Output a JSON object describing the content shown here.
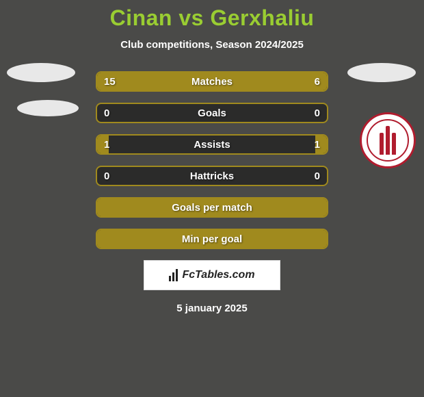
{
  "title": "Cinan vs Gerxhaliu",
  "subtitle": "Club competitions, Season 2024/2025",
  "colors": {
    "background": "#4a4a48",
    "title": "#9acd32",
    "bar_border": "#a08a1e",
    "bar_fill": "#a08a1e",
    "bar_bg": "#2b2b2a",
    "text": "#ffffff",
    "logo_red": "#b01c2e"
  },
  "stats": [
    {
      "label": "Matches",
      "left_value": "15",
      "right_value": "6",
      "left_fill_pct": 71,
      "right_fill_pct": 29
    },
    {
      "label": "Goals",
      "left_value": "0",
      "right_value": "0",
      "left_fill_pct": 0,
      "right_fill_pct": 0
    },
    {
      "label": "Assists",
      "left_value": "1",
      "right_value": "1",
      "left_fill_pct": 5,
      "right_fill_pct": 5
    },
    {
      "label": "Hattricks",
      "left_value": "0",
      "right_value": "0",
      "left_fill_pct": 0,
      "right_fill_pct": 0
    },
    {
      "label": "Goals per match",
      "left_value": "",
      "right_value": "",
      "left_fill_pct": 100,
      "right_fill_pct": 0
    },
    {
      "label": "Min per goal",
      "left_value": "",
      "right_value": "",
      "left_fill_pct": 100,
      "right_fill_pct": 0
    }
  ],
  "brand": "FcTables.com",
  "date": "5 january 2025"
}
